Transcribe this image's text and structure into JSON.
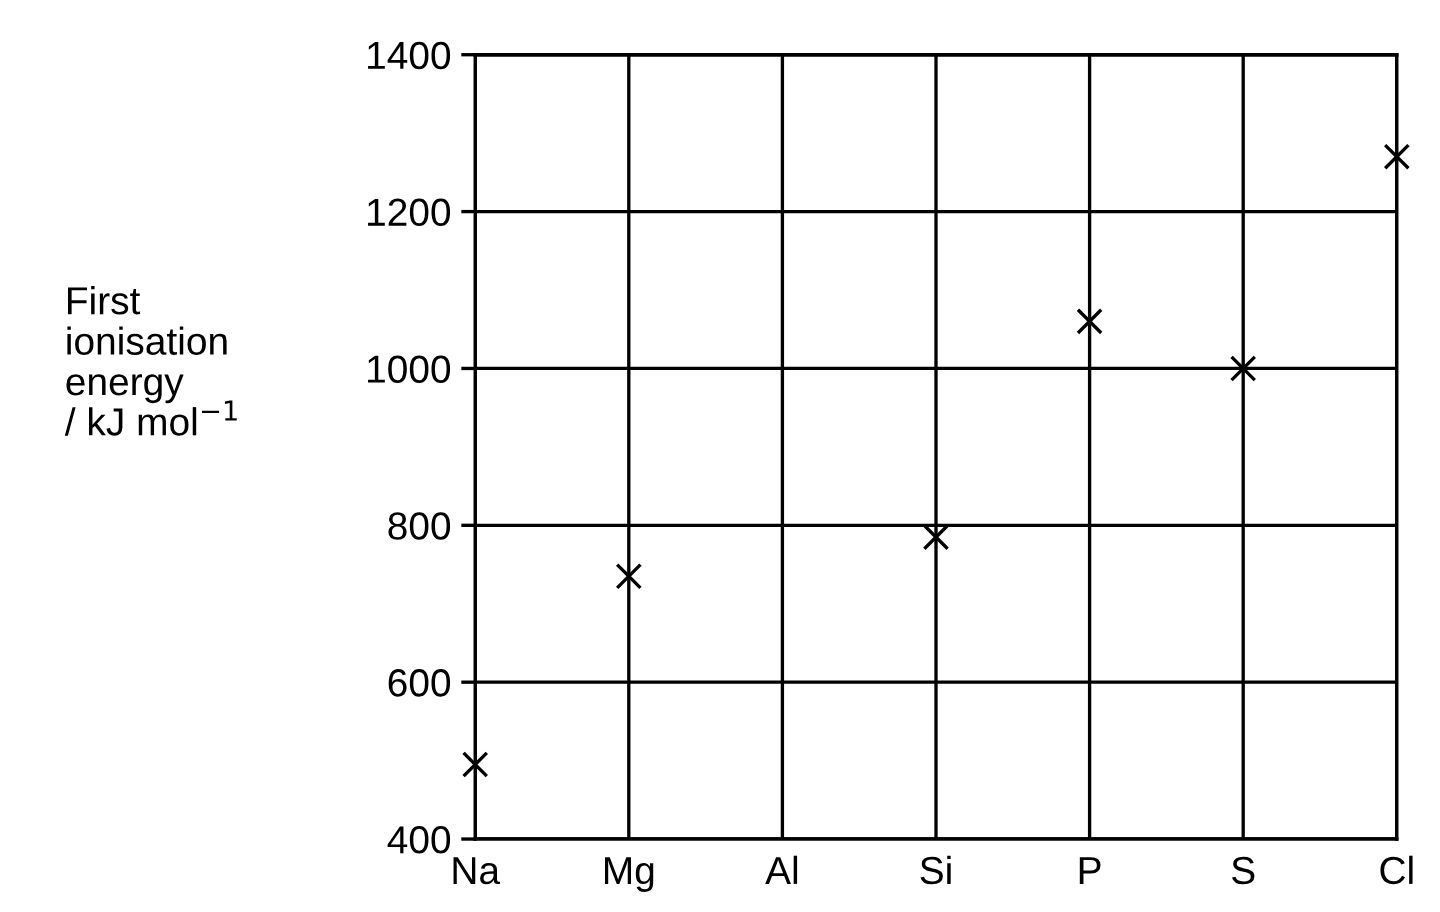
{
  "chart_data": {
    "type": "scatter",
    "ylabel": "First\nionisation\nenergy\n/ kJ mol$^{−1}$",
    "categories": [
      "Na",
      "Mg",
      "Al",
      "Si",
      "P",
      "S",
      "Cl"
    ],
    "series": [
      {
        "color": "#000000",
        "values": [
          495,
          735,
          null,
          785,
          1060,
          1000,
          1270
        ]
      }
    ],
    "ylim": [
      400,
      1400
    ],
    "yticks": [
      400,
      600,
      800,
      1000,
      1200,
      1400
    ],
    "grid": true,
    "marker": "cross"
  }
}
